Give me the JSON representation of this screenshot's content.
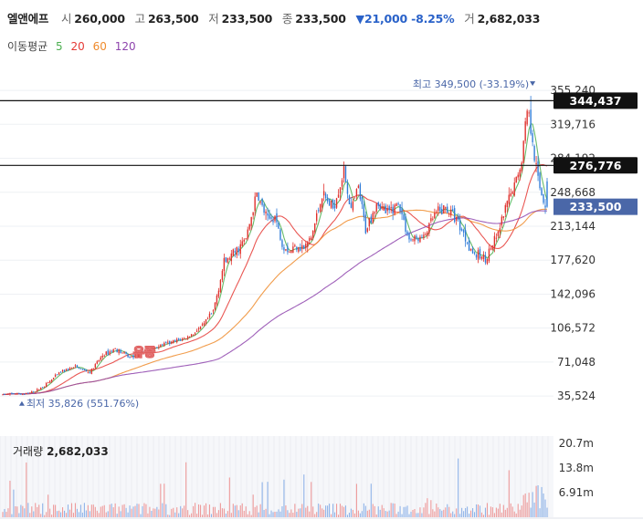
{
  "header": {
    "name": "엘앤에프",
    "open_label": "시",
    "open": "260,000",
    "high_label": "고",
    "high": "263,500",
    "low_label": "저",
    "low": "233,500",
    "close_label": "종",
    "close": "233,500",
    "change": "▼21,000 -8.25%",
    "volume_label": "거",
    "volume": "2,682,033"
  },
  "ma": {
    "label": "이동평균",
    "items": [
      {
        "period": "5",
        "color": "#4caf50"
      },
      {
        "period": "20",
        "color": "#e53935"
      },
      {
        "period": "60",
        "color": "#ef8b2c"
      },
      {
        "period": "120",
        "color": "#8e44ad"
      }
    ]
  },
  "volume_panel": {
    "label": "거래량",
    "value": "2,682,033"
  },
  "chart_data": {
    "type": "candlestick",
    "y_axis_ticks": [
      355240,
      319716,
      284192,
      248668,
      213144,
      177620,
      142096,
      106572,
      71048,
      35524
    ],
    "y_axis_labels": [
      "355,240",
      "319,716",
      "284,192",
      "248,668",
      "213,144",
      "177,620",
      "142,096",
      "106,572",
      "71,048",
      "35,524"
    ],
    "ylim": [
      28000,
      362000
    ],
    "h_lines": [
      {
        "value": 344437,
        "label": "344,437"
      },
      {
        "value": 276776,
        "label": "276,776"
      }
    ],
    "current": {
      "value": 233500,
      "label": "233,500"
    },
    "max_annotation": "최고 349,500 (-33.19%)",
    "max_value": 349500,
    "min_annotation": "최저 35,826 (551.76%)",
    "min_value": 35826,
    "event_label": "유증",
    "event_value": 82000,
    "waypoints": [
      [
        0,
        37000
      ],
      [
        6,
        38000
      ],
      [
        12,
        37500
      ],
      [
        18,
        40500
      ],
      [
        24,
        48000
      ],
      [
        32,
        61000
      ],
      [
        40,
        66000
      ],
      [
        48,
        60000
      ],
      [
        55,
        78000
      ],
      [
        62,
        85000
      ],
      [
        70,
        76000
      ],
      [
        78,
        82000
      ],
      [
        86,
        88000
      ],
      [
        94,
        92000
      ],
      [
        102,
        97000
      ],
      [
        110,
        108000
      ],
      [
        116,
        124000
      ],
      [
        122,
        175000
      ],
      [
        128,
        186000
      ],
      [
        134,
        200000
      ],
      [
        140,
        247000
      ],
      [
        146,
        219000
      ],
      [
        150,
        224000
      ],
      [
        154,
        195000
      ],
      [
        158,
        187000
      ],
      [
        162,
        194000
      ],
      [
        166,
        190000
      ],
      [
        170,
        201000
      ],
      [
        176,
        246000
      ],
      [
        182,
        232000
      ],
      [
        188,
        271000
      ],
      [
        192,
        229000
      ],
      [
        196,
        253000
      ],
      [
        200,
        209000
      ],
      [
        206,
        238000
      ],
      [
        212,
        226000
      ],
      [
        218,
        238000
      ],
      [
        224,
        199000
      ],
      [
        232,
        201000
      ],
      [
        238,
        225000
      ],
      [
        244,
        232000
      ],
      [
        250,
        222000
      ],
      [
        256,
        197000
      ],
      [
        260,
        183000
      ],
      [
        266,
        180000
      ],
      [
        272,
        200000
      ],
      [
        278,
        236000
      ],
      [
        282,
        256000
      ],
      [
        286,
        282000
      ],
      [
        289,
        340000
      ],
      [
        292,
        304000
      ],
      [
        295,
        260000
      ],
      [
        298,
        240000
      ],
      [
        300,
        233500
      ]
    ],
    "volume": {
      "y_axis_labels": [
        "20.7m",
        "13.8m",
        "6.91m"
      ],
      "y_axis_values": [
        20700000,
        13800000,
        6910000
      ],
      "ymax": 22800000,
      "last": 2682033
    }
  }
}
